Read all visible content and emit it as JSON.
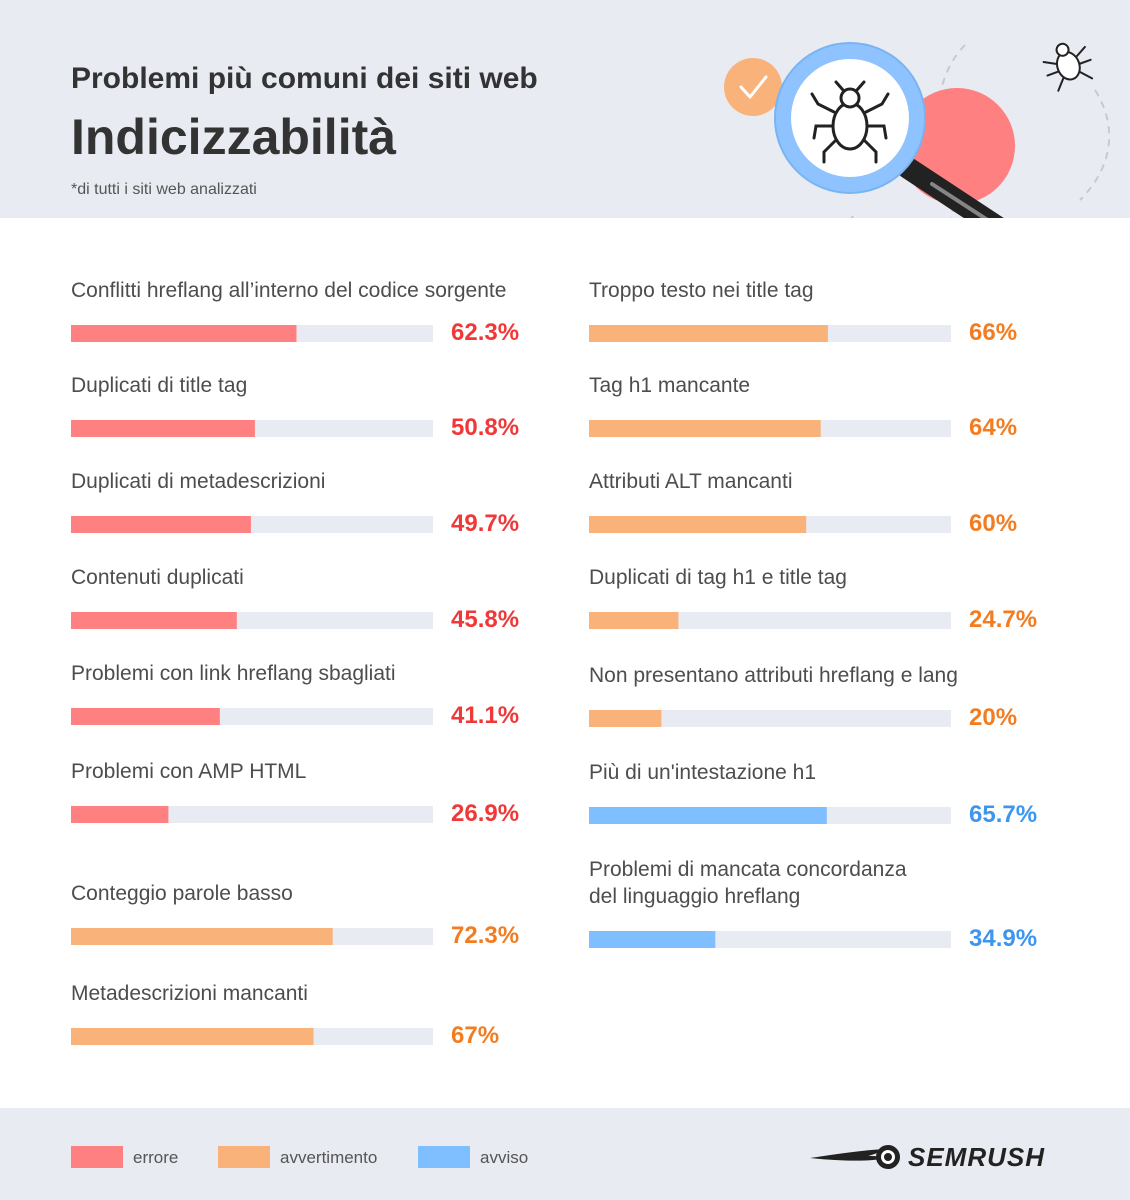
{
  "header": {
    "kicker": "Problemi più comuni dei siti web",
    "title": "Indicizzabilità",
    "note": "*di tutti i siti web analizzati"
  },
  "colors": {
    "errore": "#ff8080",
    "avvertimento": "#f9b37a",
    "avviso": "#7fbfff",
    "track": "#e8ebf1",
    "value_errore": "#f03838",
    "value_avvertimento": "#f47c20",
    "value_avviso": "#3c96ee"
  },
  "chart_data": {
    "type": "bar",
    "orientation": "horizontal",
    "unit": "%",
    "xlim": [
      0,
      100
    ],
    "columns": [
      [
        {
          "label": "Conflitti hreflang all’interno del codice sorgente",
          "value": 62.3,
          "value_label": "62.3%",
          "category": "errore"
        },
        {
          "label": "Duplicati di title tag",
          "value": 50.8,
          "value_label": "50.8%",
          "category": "errore"
        },
        {
          "label": "Duplicati di metadescrizioni",
          "value": 49.7,
          "value_label": "49.7%",
          "category": "errore"
        },
        {
          "label": "Contenuti duplicati",
          "value": 45.8,
          "value_label": "45.8%",
          "category": "errore"
        },
        {
          "label": "Problemi con link hreflang sbagliati",
          "value": 41.1,
          "value_label": "41.1%",
          "category": "errore"
        },
        {
          "label": "Problemi con AMP HTML",
          "value": 26.9,
          "value_label": "26.9%",
          "category": "errore"
        },
        {
          "label": "Conteggio parole basso",
          "value": 72.3,
          "value_label": "72.3%",
          "category": "avvertimento"
        },
        {
          "label": "Metadescrizioni mancanti",
          "value": 67,
          "value_label": "67%",
          "category": "avvertimento"
        }
      ],
      [
        {
          "label": "Troppo testo nei title tag",
          "value": 66,
          "value_label": "66%",
          "category": "avvertimento"
        },
        {
          "label": "Tag h1 mancante",
          "value": 64,
          "value_label": "64%",
          "category": "avvertimento"
        },
        {
          "label": "Attributi ALT mancanti",
          "value": 60,
          "value_label": "60%",
          "category": "avvertimento"
        },
        {
          "label": "Duplicati di tag h1 e title tag",
          "value": 24.7,
          "value_label": "24.7%",
          "category": "avvertimento"
        },
        {
          "label": "Non presentano attributi hreflang e lang",
          "value": 20,
          "value_label": "20%",
          "category": "avvertimento"
        },
        {
          "label": "Più di un'intestazione h1",
          "value": 65.7,
          "value_label": "65.7%",
          "category": "avviso"
        },
        {
          "label": "Problemi di mancata concordanza del linguaggio hreflang",
          "label_lines": [
            "Problemi di mancata concordanza",
            "del linguaggio hreflang"
          ],
          "value": 34.9,
          "value_label": "34.9%",
          "category": "avviso"
        }
      ]
    ],
    "legend": [
      {
        "key": "errore",
        "label": "errore"
      },
      {
        "key": "avvertimento",
        "label": "avvertimento"
      },
      {
        "key": "avviso",
        "label": "avviso"
      }
    ],
    "legend_position": "bottom-left"
  },
  "brand": {
    "name": "SEMRUSH"
  },
  "icons": [
    "check-icon",
    "magnifier-icon",
    "bug-icon"
  ]
}
